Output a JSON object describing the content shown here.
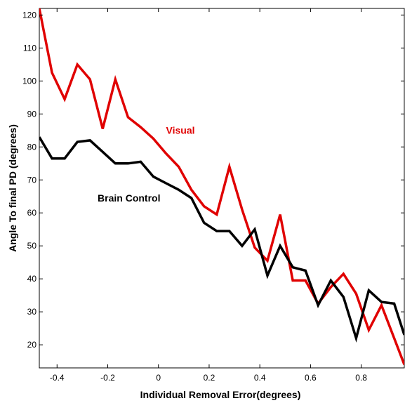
{
  "chart_data": {
    "type": "line",
    "title": "",
    "xlabel": "Individual Removal Error(degrees)",
    "ylabel": "Angle To final PD (degrees)",
    "xlim": [
      -0.47,
      0.97
    ],
    "ylim": [
      13,
      122
    ],
    "xticks": [
      -0.4,
      -0.2,
      0,
      0.2,
      0.4,
      0.6,
      0.8
    ],
    "xtick_labels": [
      "-0.4",
      "-0.2",
      "0",
      "0.2",
      "0.4",
      "0.6",
      "0.8"
    ],
    "yticks": [
      20,
      30,
      40,
      50,
      60,
      70,
      80,
      90,
      100,
      110,
      120
    ],
    "ytick_labels": [
      "20",
      "30",
      "40",
      "50",
      "60",
      "70",
      "80",
      "90",
      "100",
      "110",
      "120"
    ],
    "grid": false,
    "legend": "none",
    "series": [
      {
        "name": "Visual",
        "color": "#e00000",
        "x": [
          -0.47,
          -0.42,
          -0.37,
          -0.32,
          -0.27,
          -0.22,
          -0.17,
          -0.12,
          -0.07,
          -0.02,
          0.03,
          0.08,
          0.13,
          0.18,
          0.23,
          0.28,
          0.33,
          0.38,
          0.43,
          0.48,
          0.53,
          0.58,
          0.63,
          0.68,
          0.73,
          0.78,
          0.83,
          0.88,
          0.93,
          0.97
        ],
        "y": [
          122,
          102.5,
          94.5,
          105,
          100.5,
          85.5,
          100.5,
          89,
          86,
          82.5,
          78,
          74,
          67,
          62,
          59.5,
          74,
          61,
          49.5,
          45.5,
          59.5,
          39.5,
          39.5,
          32.5,
          37.5,
          41.5,
          35.5,
          24.5,
          32,
          22,
          14
        ]
      },
      {
        "name": "Brain Control",
        "color": "#000000",
        "x": [
          -0.47,
          -0.42,
          -0.37,
          -0.32,
          -0.27,
          -0.22,
          -0.17,
          -0.12,
          -0.07,
          -0.02,
          0.03,
          0.08,
          0.13,
          0.18,
          0.23,
          0.28,
          0.33,
          0.38,
          0.43,
          0.48,
          0.53,
          0.58,
          0.63,
          0.68,
          0.73,
          0.78,
          0.83,
          0.88,
          0.93,
          0.97
        ],
        "y": [
          83,
          76.5,
          76.5,
          81.5,
          82,
          78.5,
          75,
          75,
          75.5,
          71,
          69,
          67,
          64.5,
          57,
          54.5,
          54.5,
          50,
          55,
          41,
          50,
          43.5,
          42.5,
          32,
          39.5,
          34.5,
          22,
          36.5,
          33,
          32.5,
          23
        ]
      }
    ],
    "annotations": [
      {
        "text": "Visual",
        "x": 0.03,
        "y": 84,
        "color": "#e00000"
      },
      {
        "text": "Brain Control",
        "x": -0.24,
        "y": 63.5,
        "color": "#000000"
      }
    ]
  }
}
